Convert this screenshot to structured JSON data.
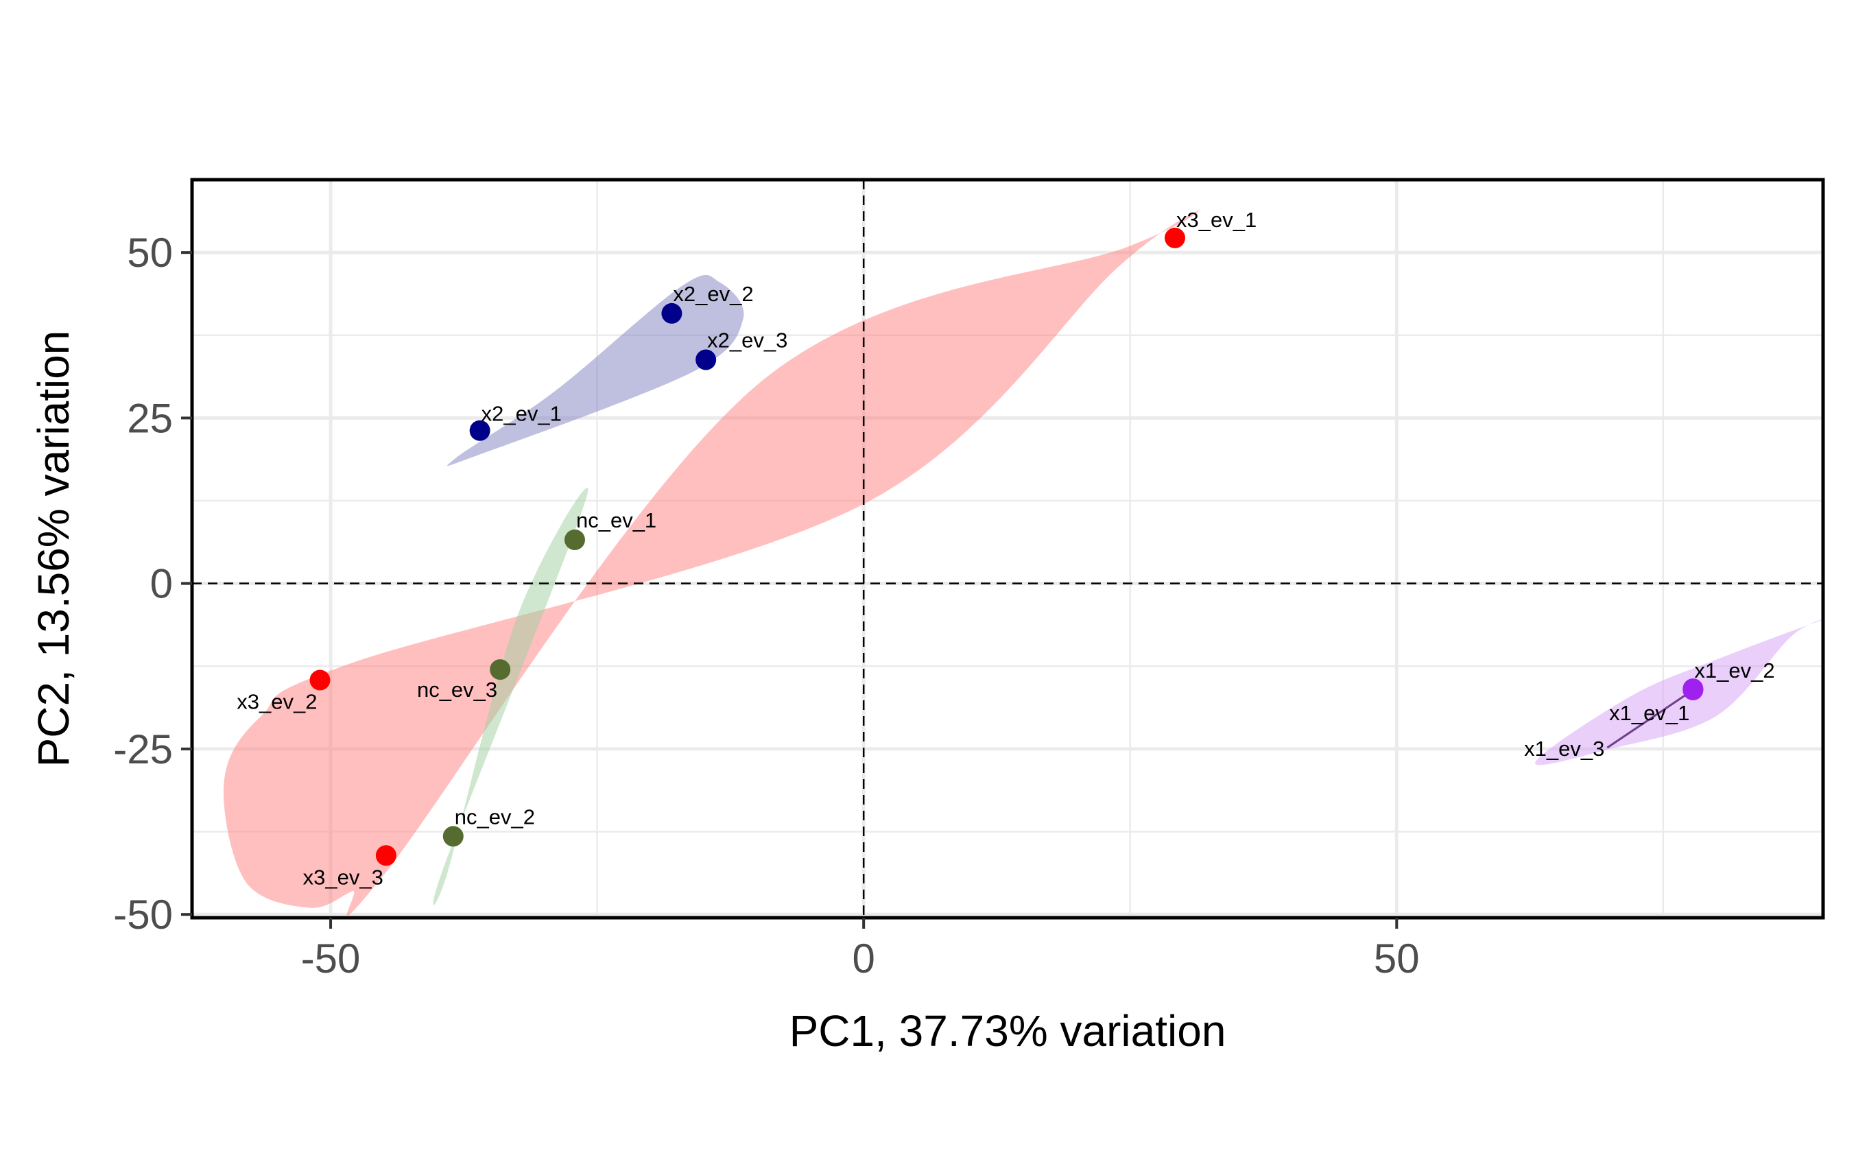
{
  "chart_data": {
    "type": "scatter",
    "xlabel": "PC1, 37.73% variation",
    "ylabel": "PC2, 13.56% variation",
    "xlim": [
      -63,
      90
    ],
    "ylim": [
      -50.5,
      61
    ],
    "x_ticks": [
      -50,
      0,
      50
    ],
    "y_ticks": [
      50,
      25,
      0,
      -25,
      -50
    ],
    "x_tick_labels": [
      "-50",
      "0",
      "50"
    ],
    "y_tick_labels": [
      "50",
      "25",
      "0",
      "-25",
      "-50"
    ],
    "grid": true,
    "reference_lines": {
      "x": 0,
      "y": 0,
      "style": "dashed"
    },
    "legend": "none",
    "groups": [
      {
        "id": "x3",
        "color": "#ff0000",
        "hull_color": "#ff7f7f",
        "points": [
          {
            "label": "x3_ev_1",
            "x": 29.2,
            "y": 52.2
          },
          {
            "label": "x3_ev_2",
            "x": -51.0,
            "y": -14.6
          },
          {
            "label": "x3_ev_3",
            "x": -44.8,
            "y": -41.1
          }
        ],
        "hull": [
          [
            -60.0,
            -30.0
          ],
          [
            -56.5,
            -20.0
          ],
          [
            -48.0,
            -12.0
          ],
          [
            0,
            12.0
          ],
          [
            24.0,
            48.0
          ],
          [
            31.5,
            56.5
          ],
          [
            25.0,
            51.0
          ],
          [
            -10.0,
            30.0
          ],
          [
            -45.0,
            -44.0
          ],
          [
            -48.0,
            -46.5
          ],
          [
            -52.0,
            -49.0
          ],
          [
            -58.0,
            -45.0
          ]
        ]
      },
      {
        "id": "x2",
        "color": "#00008b",
        "hull_color": "#8080c0",
        "points": [
          {
            "label": "x2_ev_1",
            "x": -36.0,
            "y": 23.1
          },
          {
            "label": "x2_ev_2",
            "x": -18.0,
            "y": 40.8
          },
          {
            "label": "x2_ev_3",
            "x": -14.8,
            "y": 33.8
          }
        ],
        "hull": [
          [
            -38.3,
            18.9
          ],
          [
            -29.0,
            29.0
          ],
          [
            -17.0,
            45.0
          ],
          [
            -13.5,
            45.5
          ],
          [
            -11.3,
            40.0
          ],
          [
            -16.0,
            32.0
          ],
          [
            -36.0,
            19.5
          ]
        ]
      },
      {
        "id": "nc",
        "color": "#556b2f",
        "hull_color": "#a0d0a0",
        "points": [
          {
            "label": "nc_ev_1",
            "x": -27.1,
            "y": 6.6
          },
          {
            "label": "nc_ev_2",
            "x": -38.5,
            "y": -38.2
          },
          {
            "label": "nc_ev_3",
            "x": -34.1,
            "y": -13.0
          }
        ],
        "hull": [
          [
            -26.0,
            13.0
          ],
          [
            -39.2,
            -42.0
          ],
          [
            -39.0,
            -43.5
          ],
          [
            -32.5,
            -5.0
          ]
        ]
      },
      {
        "id": "x1",
        "color": "#a020f0",
        "hull_color": "#d4a0f5",
        "points": [
          {
            "label": "x1_ev_1",
            "x": 77.8,
            "y": -16.0
          },
          {
            "label": "x1_ev_2",
            "x": 77.8,
            "y": -15.9
          },
          {
            "label": "x1_ev_3",
            "x": 77.8,
            "y": -16.1
          }
        ],
        "hull": [
          [
            63.0,
            -27.0
          ],
          [
            72.0,
            -17.0
          ],
          [
            80.0,
            -11.5
          ],
          [
            90.0,
            -5.5
          ],
          [
            87.0,
            -8.0
          ],
          [
            80.0,
            -20.0
          ],
          [
            70.0,
            -25.0
          ]
        ]
      }
    ]
  }
}
